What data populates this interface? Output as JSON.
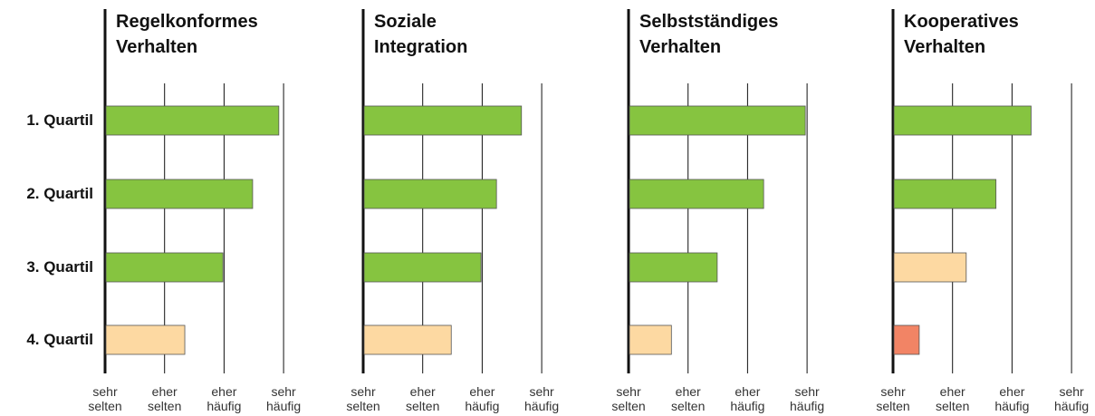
{
  "chart_data": [
    {
      "type": "bar",
      "orientation": "horizontal",
      "title": "Regelkonformes Verhalten",
      "categories": [
        "1. Quartil",
        "2. Quartil",
        "3. Quartil",
        "4. Quartil"
      ],
      "values": [
        3.92,
        3.48,
        2.98,
        2.34
      ],
      "colors": [
        "#86c440",
        "#86c440",
        "#86c440",
        "#fdd9a2"
      ],
      "xlim": [
        1,
        4
      ],
      "xticks": [
        {
          "value": 1,
          "label": "sehr selten"
        },
        {
          "value": 2,
          "label": "eher selten"
        },
        {
          "value": 3,
          "label": "eher häufig"
        },
        {
          "value": 4,
          "label": "sehr häufig"
        }
      ],
      "grid": true
    },
    {
      "type": "bar",
      "orientation": "horizontal",
      "title": "Soziale Integration",
      "values": [
        3.66,
        3.24,
        2.98,
        2.48
      ],
      "colors": [
        "#86c440",
        "#86c440",
        "#86c440",
        "#fdd9a2"
      ],
      "xlim": [
        1,
        4
      ],
      "xticks": [
        {
          "value": 1,
          "label": "sehr selten"
        },
        {
          "value": 2,
          "label": "eher selten"
        },
        {
          "value": 3,
          "label": "eher häufig"
        },
        {
          "value": 4,
          "label": "sehr häufig"
        }
      ],
      "grid": true
    },
    {
      "type": "bar",
      "orientation": "horizontal",
      "title": "Selbstständiges Verhalten",
      "values": [
        3.97,
        3.27,
        2.49,
        1.72
      ],
      "colors": [
        "#86c440",
        "#86c440",
        "#86c440",
        "#fdd9a2"
      ],
      "xlim": [
        1,
        4
      ],
      "xticks": [
        {
          "value": 1,
          "label": "sehr selten"
        },
        {
          "value": 2,
          "label": "eher selten"
        },
        {
          "value": 3,
          "label": "eher häufig"
        },
        {
          "value": 4,
          "label": "sehr häufig"
        }
      ],
      "grid": true
    },
    {
      "type": "bar",
      "orientation": "horizontal",
      "title": "Kooperatives Verhalten",
      "values": [
        3.32,
        2.73,
        2.23,
        1.44
      ],
      "colors": [
        "#86c440",
        "#86c440",
        "#fdd9a2",
        "#f28465"
      ],
      "xlim": [
        1,
        4
      ],
      "xticks": [
        {
          "value": 1,
          "label": "sehr selten"
        },
        {
          "value": 2,
          "label": "eher selten"
        },
        {
          "value": 3,
          "label": "eher häufig"
        },
        {
          "value": 4,
          "label": "sehr häufig"
        }
      ],
      "grid": true
    }
  ]
}
